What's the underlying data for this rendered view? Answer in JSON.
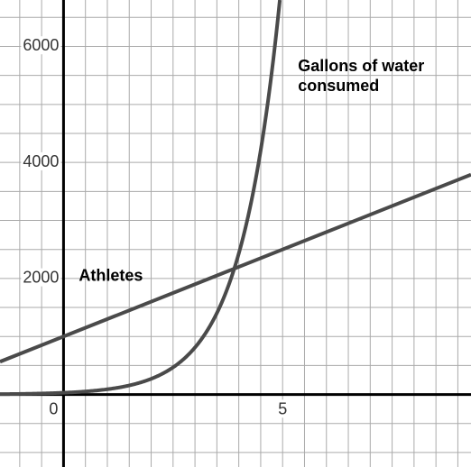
{
  "chart_data": {
    "type": "line",
    "title": "",
    "xlabel": "",
    "ylabel": "",
    "xlim": [
      -1.45,
      9.3
    ],
    "ylim": [
      -1250,
      6800
    ],
    "grid": true,
    "x_gridlines": [
      -1,
      -0.5,
      0,
      0.5,
      1,
      1.5,
      2,
      2.5,
      3,
      3.5,
      4,
      4.5,
      5,
      5.5,
      6,
      6.5,
      7,
      7.5,
      8,
      8.5,
      9
    ],
    "y_gridlines": [
      -1000,
      -500,
      0,
      500,
      1000,
      1500,
      2000,
      2500,
      3000,
      3500,
      4000,
      4500,
      5000,
      5500,
      6000,
      6500
    ],
    "x_ticks": [
      {
        "value": 0,
        "label": "0"
      },
      {
        "value": 5,
        "label": "5"
      }
    ],
    "y_ticks": [
      {
        "value": 2000,
        "label": "2000"
      },
      {
        "value": 4000,
        "label": "4000"
      },
      {
        "value": 6000,
        "label": "6000"
      }
    ],
    "series": [
      {
        "name": "Athletes",
        "kind": "linear",
        "intercept": 1000,
        "slope": 300,
        "label_at": [
          0.35,
          2030
        ]
      },
      {
        "name": "Gallons of water consumed",
        "label_lines": [
          "Gallons of water",
          "consumed"
        ],
        "kind": "exponential",
        "a": 30,
        "b": 3,
        "label_at": [
          5.35,
          5650
        ]
      }
    ],
    "colors": {
      "grid": "#aaaaaa",
      "axis": "#000000",
      "line": "#4a4a4a",
      "background": "#ffffff"
    }
  }
}
